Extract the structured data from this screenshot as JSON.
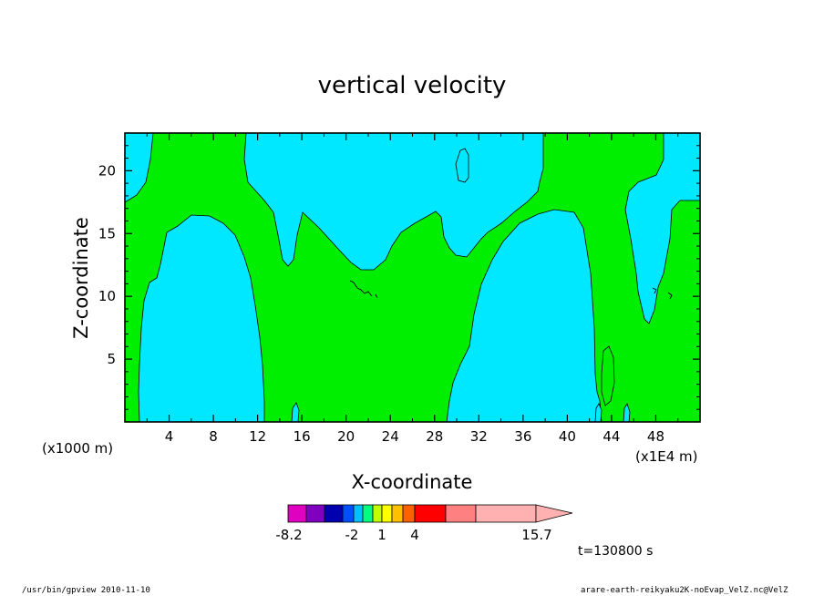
{
  "chart_data": {
    "type": "heatmap",
    "title": "vertical velocity",
    "xlabel": "X-coordinate",
    "ylabel": "Z-coordinate",
    "x_unit_left": "(x1000 m)",
    "x_unit_right": "(x1E4 m)",
    "xlim": [
      0,
      52
    ],
    "ylim": [
      0,
      23
    ],
    "x_ticks": [
      4,
      8,
      12,
      16,
      20,
      24,
      28,
      32,
      36,
      40,
      44,
      48
    ],
    "y_ticks": [
      5,
      10,
      15,
      20
    ],
    "grid": false,
    "time_label": "t=130800 s",
    "colors": {
      "cyan": "#00e8ff",
      "green": "#00ee00",
      "background": "#ffffff"
    },
    "colorbar": {
      "labels": [
        "-8.2",
        "-2",
        "1",
        "4",
        "15.7"
      ],
      "colors": [
        "#e000c0",
        "#8000c0",
        "#0000b0",
        "#0050ff",
        "#00c0ff",
        "#00ff80",
        "#c0ff00",
        "#ffff00",
        "#ffc000",
        "#ff6000",
        "#ff0000",
        "#ff8080",
        "#ffb0b0"
      ]
    }
  },
  "footer": {
    "left": "/usr/bin/gpview   2010-11-10",
    "right": "arare-earth-reikyaku2K-noEvap_VelZ.nc@VelZ"
  }
}
